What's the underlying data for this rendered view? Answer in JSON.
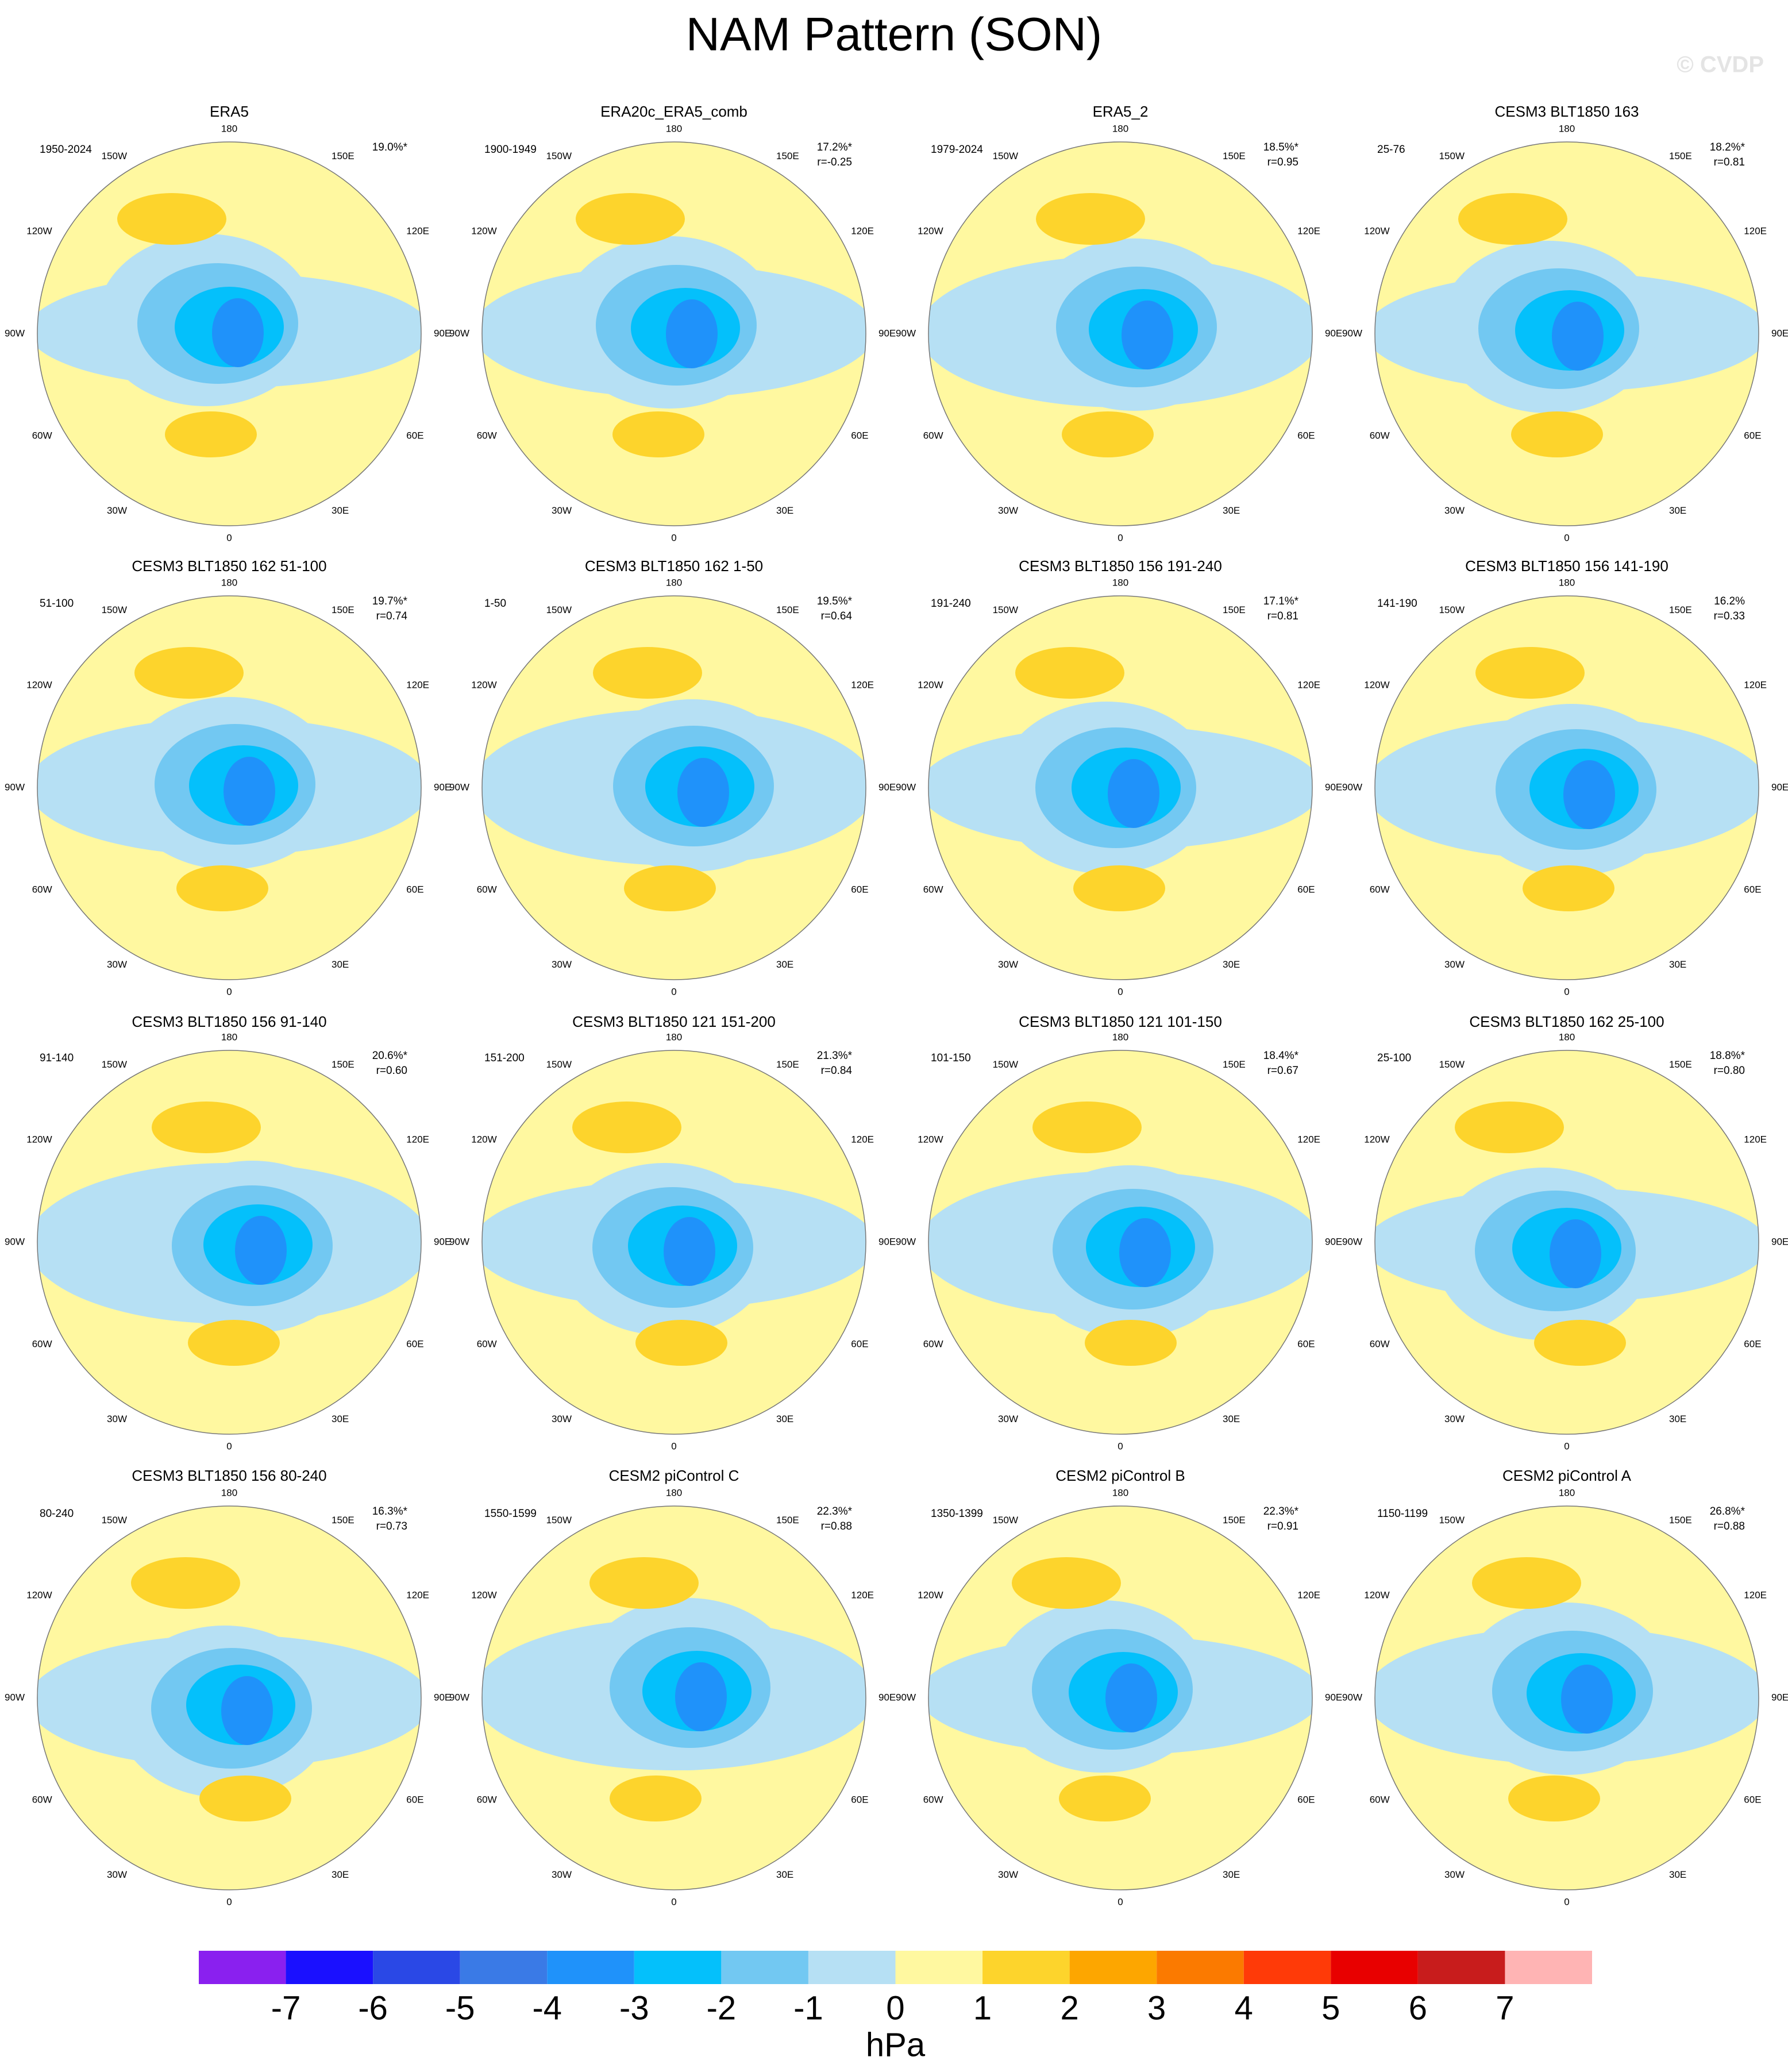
{
  "title": "NAM Pattern (SON)",
  "watermark": "© CVDP",
  "longitude_labels": [
    "180",
    "150E",
    "120E",
    "90E",
    "60E",
    "30E",
    "0",
    "30W",
    "60W",
    "90W",
    "120W",
    "150W"
  ],
  "panels": [
    {
      "title": "ERA5",
      "period": "1950-2024",
      "variance": "19.0%*"
    },
    {
      "title": "ERA20c_ERA5_comb",
      "period": "1900-1949",
      "variance": "17.2%*",
      "correlation": "r=-0.25"
    },
    {
      "title": "ERA5_2",
      "period": "1979-2024",
      "variance": "18.5%*",
      "correlation": "r=0.95"
    },
    {
      "title": "CESM3 BLT1850 163",
      "period": "25-76",
      "variance": "18.2%*",
      "correlation": "r=0.81"
    },
    {
      "title": "CESM3 BLT1850 162 51-100",
      "period": "51-100",
      "variance": "19.7%*",
      "correlation": "r=0.74"
    },
    {
      "title": "CESM3 BLT1850 162 1-50",
      "period": "1-50",
      "variance": "19.5%*",
      "correlation": "r=0.64"
    },
    {
      "title": "CESM3 BLT1850 156 191-240",
      "period": "191-240",
      "variance": "17.1%*",
      "correlation": "r=0.81"
    },
    {
      "title": "CESM3 BLT1850 156 141-190",
      "period": "141-190",
      "variance": "16.2%",
      "correlation": "r=0.33"
    },
    {
      "title": "CESM3 BLT1850 156 91-140",
      "period": "91-140",
      "variance": "20.6%*",
      "correlation": "r=0.60"
    },
    {
      "title": "CESM3 BLT1850 121 151-200",
      "period": "151-200",
      "variance": "21.3%*",
      "correlation": "r=0.84"
    },
    {
      "title": "CESM3 BLT1850 121 101-150",
      "period": "101-150",
      "variance": "18.4%*",
      "correlation": "r=0.67"
    },
    {
      "title": "CESM3 BLT1850 162 25-100",
      "period": "25-100",
      "variance": "18.8%*",
      "correlation": "r=0.80"
    },
    {
      "title": "CESM3 BLT1850 156 80-240",
      "period": "80-240",
      "variance": "16.3%*",
      "correlation": "r=0.73"
    },
    {
      "title": "CESM2 piControl C",
      "period": "1550-1599",
      "variance": "22.3%*",
      "correlation": "r=0.88"
    },
    {
      "title": "CESM2 piControl B",
      "period": "1350-1399",
      "variance": "22.3%*",
      "correlation": "r=0.91"
    },
    {
      "title": "CESM2 piControl A",
      "period": "1150-1199",
      "variance": "26.8%*",
      "correlation": "r=0.88"
    }
  ],
  "colorbar": {
    "levels": [
      -7,
      -6,
      -5,
      -4,
      -3,
      -2,
      -1,
      0,
      1,
      2,
      3,
      4,
      5,
      6,
      7
    ],
    "colors": [
      "#8a20ef",
      "#1a10ff",
      "#2a48e6",
      "#3a7ae6",
      "#1f92fa",
      "#04c0fb",
      "#72c8f2",
      "#b6e0f4",
      "#fff8a0",
      "#fdd42c",
      "#fda600",
      "#fb7a00",
      "#ff3a08",
      "#e80000",
      "#c81c1c",
      "#ffb4b4"
    ],
    "unit": "hPa"
  }
}
